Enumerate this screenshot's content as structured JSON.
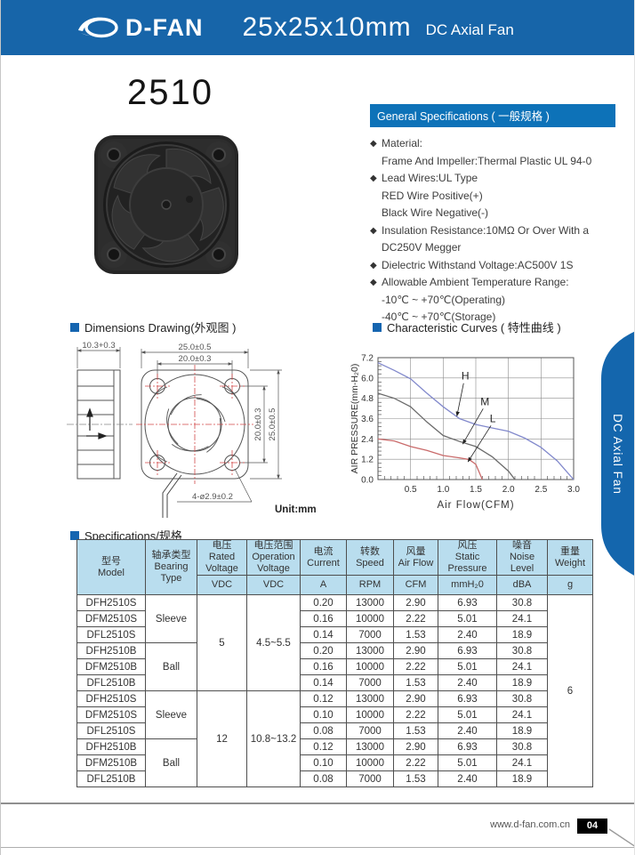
{
  "header": {
    "brand": "D-FAN",
    "title": "25x25x10mm",
    "subtitle": "DC Axial Fan"
  },
  "model_heading": "2510",
  "side_tab_label": "DC Axial Fan",
  "general": {
    "title": "General Specifications ( 一般规格 )",
    "lines": [
      {
        "b": "◆",
        "t": "Material:"
      },
      {
        "b": "",
        "t": "Frame And Impeller:Thermal Plastic UL 94-0"
      },
      {
        "b": "◆",
        "t": "Lead Wires:UL Type"
      },
      {
        "b": "",
        "t": "RED Wire Positive(+)"
      },
      {
        "b": "",
        "t": "Black Wire Negative(-)"
      },
      {
        "b": "◆",
        "t": "Insulation Resistance:10MΩ Or Over With a"
      },
      {
        "b": "",
        "t": "DC250V Megger"
      },
      {
        "b": "◆",
        "t": "Dielectric Withstand Voltage:AC500V 1S"
      },
      {
        "b": "◆",
        "t": "Allowable Ambient Temperature Range:"
      },
      {
        "b": "",
        "t": "-10℃ ~ +70℃(Operating)"
      },
      {
        "b": "",
        "t": "-40℃ ~ +70℃(Storage)"
      }
    ]
  },
  "sections": {
    "dimensions": "Dimensions Drawing(外观图 )",
    "curves": "Characteristic Curves ( 特性曲线 )",
    "specs": "Specifications/规格"
  },
  "drawing": {
    "dim_side_width": "10.3+0.3",
    "dim_outer_width": "25.0±0.5",
    "dim_hole_pitch_w": "20.0±0.3",
    "dim_hole_pitch_h": "20.0±0.3",
    "dim_outer_height": "25.0±0.5",
    "dim_holes": "4-ø2.9±0.2",
    "unit": "Unit:mm"
  },
  "chart_data": {
    "type": "line",
    "title": "Characteristic Curves ( 特性曲线 )",
    "xlabel": "Air Flow(CFM)",
    "ylabel": "AIR PRESSURE(mm-H₂0)",
    "xlim": [
      0,
      3.0
    ],
    "ylim": [
      0,
      7.2
    ],
    "xticks": [
      0.5,
      1.0,
      1.5,
      2.0,
      2.5,
      3.0
    ],
    "yticks": [
      0.0,
      1.2,
      2.4,
      3.6,
      4.8,
      6.0,
      7.2
    ],
    "grid": true,
    "legend_position": "inline-labels",
    "series": [
      {
        "name": "H",
        "color": "#8289cc",
        "points": [
          [
            0,
            6.9
          ],
          [
            0.25,
            6.45
          ],
          [
            0.5,
            5.95
          ],
          [
            0.75,
            5.1
          ],
          [
            1.0,
            4.3
          ],
          [
            1.25,
            3.6
          ],
          [
            1.5,
            3.25
          ],
          [
            1.75,
            3.05
          ],
          [
            2.0,
            2.85
          ],
          [
            2.25,
            2.45
          ],
          [
            2.5,
            1.9
          ],
          [
            2.75,
            1.1
          ],
          [
            3.0,
            0.0
          ]
        ]
      },
      {
        "name": "M",
        "color": "#6b6b6b",
        "points": [
          [
            0,
            5.1
          ],
          [
            0.25,
            4.8
          ],
          [
            0.5,
            4.3
          ],
          [
            0.75,
            3.4
          ],
          [
            1.0,
            2.6
          ],
          [
            1.25,
            2.25
          ],
          [
            1.5,
            1.95
          ],
          [
            1.75,
            1.35
          ],
          [
            2.0,
            0.5
          ],
          [
            2.1,
            0.0
          ]
        ]
      },
      {
        "name": "L",
        "color": "#c96a6a",
        "points": [
          [
            0,
            2.4
          ],
          [
            0.25,
            2.28
          ],
          [
            0.5,
            1.95
          ],
          [
            0.75,
            1.72
          ],
          [
            1.0,
            1.42
          ],
          [
            1.25,
            1.28
          ],
          [
            1.4,
            1.18
          ],
          [
            1.5,
            0.9
          ],
          [
            1.6,
            0.0
          ]
        ]
      }
    ],
    "labels": [
      {
        "text": "H",
        "x": 1.34,
        "y": 5.9,
        "tipx": 1.21,
        "tipy": 3.75
      },
      {
        "text": "M",
        "x": 1.64,
        "y": 4.4,
        "tipx": 1.3,
        "tipy": 2.1
      },
      {
        "text": "L",
        "x": 1.76,
        "y": 3.4,
        "tipx": 1.38,
        "tipy": 1.05
      }
    ]
  },
  "table": {
    "headers": {
      "model_cn": "型号",
      "model_en": "Model",
      "bearing_cn": "轴承类型",
      "bearing_en1": "Bearing",
      "bearing_en2": "Type",
      "rated_cn": "电压",
      "rated_en1": "Rated",
      "rated_en2": "Voltage",
      "op_cn": "电压范围",
      "op_en1": "Operation",
      "op_en2": "Voltage",
      "current_cn": "电流",
      "current_en": "Current",
      "speed_cn": "转数",
      "speed_en": "Speed",
      "airflow_cn": "风量",
      "airflow_en": "Air Flow",
      "pressure_cn": "风压",
      "pressure_en1": "Static",
      "pressure_en2": "Pressure",
      "noise_cn": "噪音",
      "noise_en": "Noise Level",
      "weight_cn": "重量",
      "weight_en": "Weight"
    },
    "units": {
      "rated": "VDC",
      "op": "VDC",
      "current": "A",
      "speed": "RPM",
      "airflow": "CFM",
      "pressure": "mmH₂0",
      "noise": "dBA",
      "weight": "g"
    },
    "merged": {
      "bearing_sleeve": "Sleeve",
      "bearing_ball": "Ball",
      "rated_5": "5",
      "op_5": "4.5~5.5",
      "rated_12": "12",
      "op_12": "10.8~13.2",
      "weight": "6"
    },
    "rows": [
      {
        "model": "DFH2510S",
        "current": "0.20",
        "speed": "13000",
        "airflow": "2.90",
        "pressure": "6.93",
        "noise": "30.8"
      },
      {
        "model": "DFM2510S",
        "current": "0.16",
        "speed": "10000",
        "airflow": "2.22",
        "pressure": "5.01",
        "noise": "24.1"
      },
      {
        "model": "DFL2510S",
        "current": "0.14",
        "speed": "7000",
        "airflow": "1.53",
        "pressure": "2.40",
        "noise": "18.9"
      },
      {
        "model": "DFH2510B",
        "current": "0.20",
        "speed": "13000",
        "airflow": "2.90",
        "pressure": "6.93",
        "noise": "30.8"
      },
      {
        "model": "DFM2510B",
        "current": "0.16",
        "speed": "10000",
        "airflow": "2.22",
        "pressure": "5.01",
        "noise": "24.1"
      },
      {
        "model": "DFL2510B",
        "current": "0.14",
        "speed": "7000",
        "airflow": "1.53",
        "pressure": "2.40",
        "noise": "18.9"
      },
      {
        "model": "DFH2510S",
        "current": "0.12",
        "speed": "13000",
        "airflow": "2.90",
        "pressure": "6.93",
        "noise": "30.8"
      },
      {
        "model": "DFM2510S",
        "current": "0.10",
        "speed": "10000",
        "airflow": "2.22",
        "pressure": "5.01",
        "noise": "24.1"
      },
      {
        "model": "DFL2510S",
        "current": "0.08",
        "speed": "7000",
        "airflow": "1.53",
        "pressure": "2.40",
        "noise": "18.9"
      },
      {
        "model": "DFH2510B",
        "current": "0.12",
        "speed": "13000",
        "airflow": "2.90",
        "pressure": "6.93",
        "noise": "30.8"
      },
      {
        "model": "DFM2510B",
        "current": "0.10",
        "speed": "10000",
        "airflow": "2.22",
        "pressure": "5.01",
        "noise": "24.1"
      },
      {
        "model": "DFL2510B",
        "current": "0.08",
        "speed": "7000",
        "airflow": "1.53",
        "pressure": "2.40",
        "noise": "18.9"
      }
    ]
  },
  "footer": {
    "site": "www.d-fan.com.cn",
    "page": "04"
  }
}
